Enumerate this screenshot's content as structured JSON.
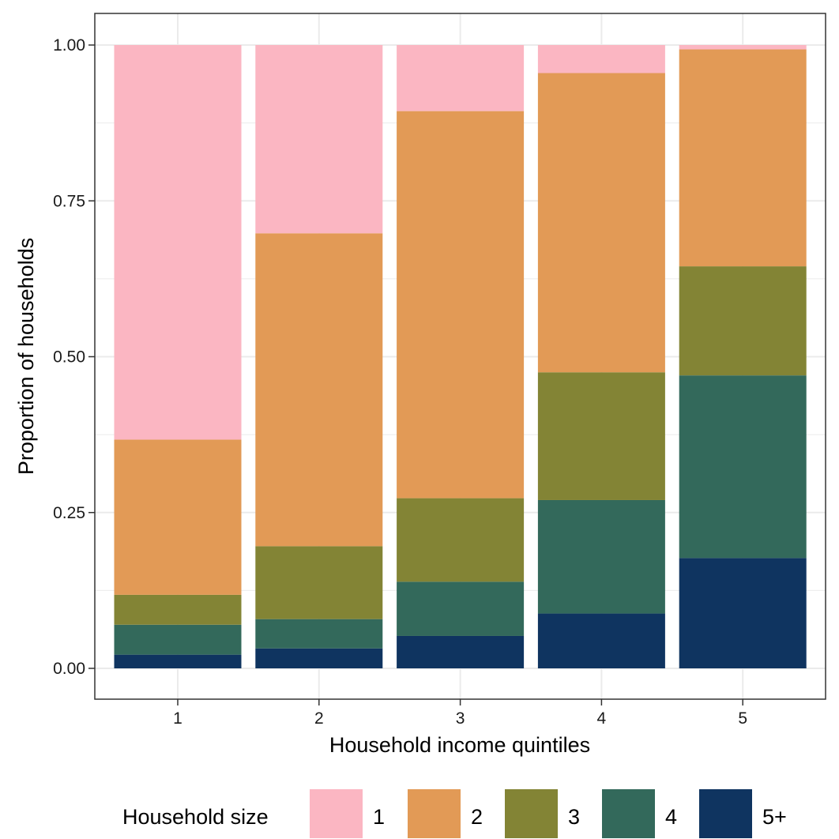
{
  "chart_data": {
    "type": "bar",
    "stacked": true,
    "normalized": true,
    "xlabel": "Household income quintiles",
    "ylabel": "Proportion of households",
    "categories": [
      "1",
      "2",
      "3",
      "4",
      "5"
    ],
    "ylim": [
      0,
      1
    ],
    "y_ticks": [
      "0.00",
      "0.25",
      "0.50",
      "0.75",
      "1.00"
    ],
    "grid": true,
    "legend": {
      "title": "Household size",
      "position": "bottom",
      "entries": [
        "1",
        "2",
        "3",
        "4",
        "5+"
      ]
    },
    "series": [
      {
        "name": "5+",
        "color": "#0f3460",
        "values": [
          0.022,
          0.032,
          0.052,
          0.088,
          0.177
        ]
      },
      {
        "name": "4",
        "color": "#33695b",
        "values": [
          0.048,
          0.047,
          0.087,
          0.182,
          0.293
        ]
      },
      {
        "name": "3",
        "color": "#838435",
        "values": [
          0.048,
          0.117,
          0.134,
          0.205,
          0.175
        ]
      },
      {
        "name": "2",
        "color": "#e29a56",
        "values": [
          0.249,
          0.502,
          0.621,
          0.48,
          0.348
        ]
      },
      {
        "name": "1",
        "color": "#fbb6c2",
        "values": [
          0.633,
          0.302,
          0.106,
          0.045,
          0.007
        ]
      }
    ],
    "panel_background": "#ffffff",
    "grid_color": "#ebebeb",
    "border_color": "#333333"
  }
}
